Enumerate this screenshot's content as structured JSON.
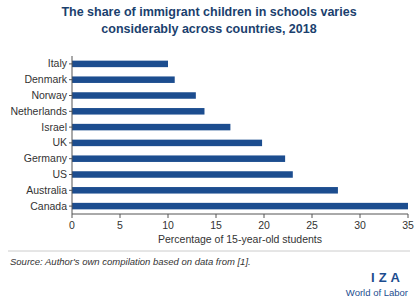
{
  "chart_data": {
    "type": "bar",
    "orientation": "horizontal",
    "title": "The share of immigrant children in schools varies considerably across countries, 2018",
    "categories": [
      "Italy",
      "Denmark",
      "Norway",
      "Netherlands",
      "Israel",
      "UK",
      "Germany",
      "US",
      "Australia",
      "Canada"
    ],
    "values": [
      10,
      10.7,
      12.9,
      13.8,
      16.5,
      19.8,
      22.2,
      23,
      27.7,
      35
    ],
    "color": "#1c4d8f",
    "xlim": [
      0,
      35
    ],
    "xticks": [
      0,
      5,
      10,
      15,
      20,
      25,
      30,
      35
    ],
    "x_label": "Percentage of 15-year-old students",
    "grid": false,
    "source": "Source: Author's own compilation based on data from [1].",
    "annotations": [
      "IZA",
      "World of Labor"
    ]
  }
}
